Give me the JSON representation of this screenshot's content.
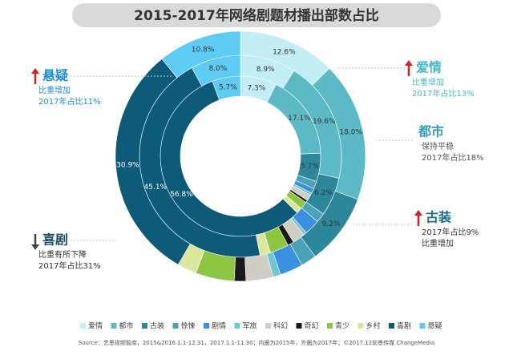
{
  "chart_data": {
    "type": "nested-donut",
    "title": "2015-2017年网络剧题材播出部数占比",
    "categories": [
      "爱情",
      "都市",
      "古装",
      "惊悚",
      "剧情",
      "军旅",
      "科幻",
      "奇幻",
      "青少",
      "乡村",
      "喜剧",
      "悬疑"
    ],
    "colors": [
      "#c4eef5",
      "#5cb9c6",
      "#2b8799",
      "#4aa3b4",
      "#3a8fe0",
      "#70c6d4",
      "#cfcdc4",
      "#1a1a1a",
      "#8cc540",
      "#dbe89c",
      "#0d5b78",
      "#5ecbf2"
    ],
    "series": [
      {
        "values": [
          7.3,
          17.1,
          5.7,
          1.5,
          1.0,
          0.5,
          1.2,
          0.5,
          1.5,
          1.2,
          56.8,
          5.7
        ],
        "value_labels": [
          "7.3%",
          "17.1%",
          "5.7%",
          null,
          null,
          null,
          null,
          null,
          null,
          null,
          "56.8%",
          "5.7%"
        ]
      },
      {
        "values": [
          8.9,
          19.6,
          6.2,
          1.5,
          2.5,
          0.5,
          2.0,
          1.0,
          3.0,
          1.7,
          45.1,
          8.0
        ],
        "value_labels": [
          "8.9%",
          "19.6%",
          "6.2%",
          null,
          null,
          null,
          null,
          null,
          null,
          null,
          "45.1%",
          "8.0%"
        ]
      },
      {
        "values": [
          12.6,
          18.0,
          9.2,
          2.0,
          3.0,
          1.0,
          3.5,
          1.5,
          5.0,
          2.5,
          30.9,
          10.8
        ],
        "value_labels": [
          "12.6%",
          "18.0%",
          "9.2%",
          null,
          null,
          null,
          null,
          null,
          null,
          null,
          "30.9%",
          "10.8%"
        ]
      }
    ],
    "annotations": [
      {
        "title": "悬疑",
        "lines": [
          "比重增加",
          "2017年占比11%"
        ]
      },
      {
        "title": "爱情",
        "lines": [
          "比重增加",
          "2017年占比13%"
        ]
      },
      {
        "title": "都市",
        "lines": [
          "保持平稳",
          "2017年占比18%"
        ]
      },
      {
        "title": "古装",
        "lines": [
          "2017年占比9%",
          "比重增加"
        ]
      },
      {
        "title": "喜剧",
        "lines": [
          "比重有所下降",
          "2017年占比31%"
        ]
      }
    ],
    "source": "Source：艺恩视频智库，2015&2016.1.1-12.31，2017.1.1-11.30；内圈为2015年，外圈为2017年；©2017.12前景传媒 ChangeMedia"
  }
}
